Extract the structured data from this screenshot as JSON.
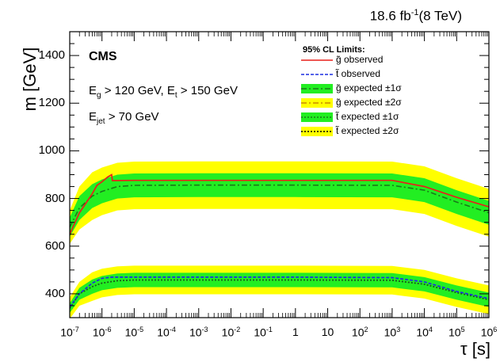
{
  "header": {
    "lumi": "18.6 fb",
    "lumi_exp": "-1",
    "energy": "(8 TeV)"
  },
  "annotations": {
    "cms": "CMS",
    "cut1_a": "E",
    "cut1_a_sub": "g",
    "cut1_b": " > 120 GeV, E",
    "cut1_b_sub": "t",
    "cut1_c": " > 150 GeV",
    "cut2_a": "E",
    "cut2_a_sub": "jet",
    "cut2_b": " > 70 GeV"
  },
  "legend": {
    "title": "95% CL Limits:",
    "entries": [
      {
        "label": "g̃ observed",
        "style": "solid",
        "color": "#e8211b"
      },
      {
        "label": "t̃ observed",
        "style": "dashed",
        "color": "#1c2fe0"
      },
      {
        "label": "g̃ expected ±1σ",
        "style": "dashdot",
        "color": "#1a7a1a",
        "band": "#22ee22"
      },
      {
        "label": "g̃ expected ±2σ",
        "style": "dashdot",
        "color": "#c98a00",
        "band": "#ffff00"
      },
      {
        "label": "t̃ expected ±1σ",
        "style": "dotted",
        "color": "#1a7a1a",
        "band": "#22ee22"
      },
      {
        "label": "t̃ expected ±2σ",
        "style": "dotted",
        "color": "#000000",
        "band": "#ffff00"
      }
    ]
  },
  "axes": {
    "ylabel": "m [GeV]",
    "xlabel": "τ [s]",
    "yticks": [
      400,
      600,
      800,
      1000,
      1200,
      1400
    ],
    "xticks": [
      {
        "base": "10",
        "exp": "-7",
        "v": -7
      },
      {
        "base": "10",
        "exp": "-6",
        "v": -6
      },
      {
        "base": "10",
        "exp": "-5",
        "v": -5
      },
      {
        "base": "10",
        "exp": "-4",
        "v": -4
      },
      {
        "base": "10",
        "exp": "-3",
        "v": -3
      },
      {
        "base": "10",
        "exp": "-2",
        "v": -2
      },
      {
        "base": "10",
        "exp": "-1",
        "v": -1
      },
      {
        "base": "1",
        "exp": "",
        "v": 0
      },
      {
        "base": "10",
        "exp": "",
        "v": 1
      },
      {
        "base": "10",
        "exp": "2",
        "v": 2
      },
      {
        "base": "10",
        "exp": "3",
        "v": 3
      },
      {
        "base": "10",
        "exp": "4",
        "v": 4
      },
      {
        "base": "10",
        "exp": "5",
        "v": 5
      },
      {
        "base": "10",
        "exp": "6",
        "v": 6
      }
    ]
  },
  "chart_data": {
    "type": "line",
    "xscale": "log",
    "xlim": [
      1e-07,
      1000000.0
    ],
    "ylim": [
      300,
      1500
    ],
    "grid": false,
    "legend_position": "top-right",
    "series": [
      {
        "name": "g̃ observed",
        "x": [
          1e-07,
          2e-07,
          3e-07,
          5e-07,
          7e-07,
          1e-06,
          1.5e-06,
          2e-06,
          2.1e-06,
          1e-05,
          0.001,
          1,
          1000,
          10000.0,
          100000.0,
          1000000.0
        ],
        "y": [
          650,
          740,
          775,
          820,
          855,
          870,
          890,
          900,
          875,
          876,
          876,
          876,
          876,
          850,
          805,
          765
        ]
      },
      {
        "name": "t̃ observed",
        "x": [
          1e-07,
          2e-07,
          5e-07,
          1e-06,
          2e-06,
          1e-05,
          0.001,
          1,
          1000,
          10000.0,
          100000.0,
          1000000.0
        ],
        "y": [
          345,
          400,
          445,
          465,
          470,
          470,
          470,
          470,
          468,
          450,
          410,
          380
        ]
      },
      {
        "name": "g̃ expected",
        "x": [
          1e-07,
          2e-07,
          5e-07,
          1e-06,
          3e-06,
          1e-05,
          0.001,
          1,
          1000,
          10000.0,
          100000.0,
          1000000.0
        ],
        "y": [
          680,
          760,
          810,
          830,
          850,
          855,
          856,
          856,
          855,
          835,
          785,
          740
        ],
        "band1": [
          40,
          50,
          50,
          50,
          50,
          50,
          50,
          50,
          50,
          50,
          50,
          50
        ],
        "band2": [
          70,
          90,
          100,
          100,
          100,
          100,
          100,
          100,
          100,
          100,
          100,
          100
        ]
      },
      {
        "name": "t̃ expected",
        "x": [
          1e-07,
          2e-07,
          5e-07,
          1e-06,
          3e-06,
          1e-05,
          0.001,
          1,
          1000,
          10000.0,
          100000.0,
          1000000.0
        ],
        "y": [
          340,
          400,
          430,
          445,
          455,
          458,
          458,
          458,
          457,
          440,
          405,
          375
        ],
        "band1": [
          20,
          25,
          30,
          30,
          30,
          30,
          30,
          30,
          30,
          30,
          30,
          30
        ],
        "band2": [
          45,
          50,
          60,
          60,
          60,
          60,
          60,
          60,
          60,
          60,
          60,
          60
        ]
      }
    ]
  }
}
